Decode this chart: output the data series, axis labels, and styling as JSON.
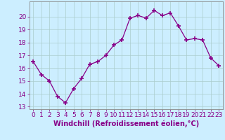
{
  "x": [
    0,
    1,
    2,
    3,
    4,
    5,
    6,
    7,
    8,
    9,
    10,
    11,
    12,
    13,
    14,
    15,
    16,
    17,
    18,
    19,
    20,
    21,
    22,
    23
  ],
  "y": [
    16.5,
    15.5,
    15.0,
    13.8,
    13.3,
    14.4,
    15.2,
    16.3,
    16.5,
    17.0,
    17.8,
    18.2,
    19.9,
    20.1,
    19.9,
    20.5,
    20.1,
    20.3,
    19.3,
    18.2,
    18.3,
    18.2,
    16.8,
    16.2
  ],
  "line_color": "#880088",
  "marker": "+",
  "marker_size": 4,
  "marker_lw": 1.2,
  "bg_color": "#cceeff",
  "grid_color": "#aacccc",
  "spine_color": "#888888",
  "tick_color": "#880088",
  "label_color": "#880088",
  "xlabel": "Windchill (Refroidissement éolien,°C)",
  "xlim": [
    -0.5,
    23.5
  ],
  "ylim": [
    12.8,
    21.2
  ],
  "yticks": [
    13,
    14,
    15,
    16,
    17,
    18,
    19,
    20
  ],
  "xticks": [
    0,
    1,
    2,
    3,
    4,
    5,
    6,
    7,
    8,
    9,
    10,
    11,
    12,
    13,
    14,
    15,
    16,
    17,
    18,
    19,
    20,
    21,
    22,
    23
  ],
  "tick_font_size": 6.5,
  "xlabel_font_size": 7.0
}
